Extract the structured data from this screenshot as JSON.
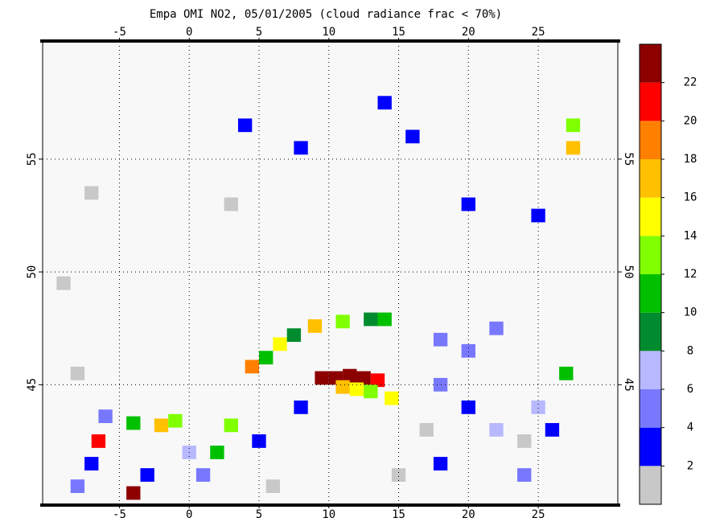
{
  "chart_data": {
    "type": "map",
    "title": "Empa OMI NO2, 05/01/2005 (cloud radiance frac < 70%)",
    "xlim": [
      -10.5,
      30.7
    ],
    "ylim": [
      39.7,
      60.2
    ],
    "xticks": [
      -5,
      0,
      5,
      10,
      15,
      20,
      25
    ],
    "yticks": [
      45,
      50,
      55
    ],
    "grid": true,
    "colorbar": {
      "bounds": [
        0,
        2,
        4,
        6,
        8,
        10,
        12,
        14,
        16,
        18,
        20,
        22,
        24
      ],
      "colors": [
        "#c8c8c8",
        "#0000ff",
        "#7878ff",
        "#b8b8ff",
        "#008c2e",
        "#00c000",
        "#80ff00",
        "#ffff00",
        "#ffc000",
        "#ff8000",
        "#ff0000",
        "#8c0000"
      ],
      "ticks": [
        2,
        4,
        6,
        8,
        10,
        12,
        14,
        16,
        18,
        20,
        22
      ]
    },
    "cells": {
      "lon": [
        9.5,
        10.5,
        11.5,
        12.5,
        13.5,
        11,
        12,
        13,
        14.5,
        5.5,
        6.5,
        7.5,
        9,
        11,
        13,
        14,
        4.5,
        -6,
        -4,
        -2,
        -1,
        -6.5,
        -4,
        -3,
        -7,
        -8,
        0,
        3,
        2,
        1,
        5,
        6,
        8,
        18,
        20,
        22,
        24,
        20,
        18,
        22,
        25,
        26,
        17,
        15,
        18,
        24,
        27,
        4,
        8,
        16,
        14,
        20,
        27.5,
        27.5,
        25,
        -7,
        -9,
        -8,
        3
      ],
      "lat": [
        45.3,
        45.3,
        45.4,
        45.3,
        45.2,
        44.9,
        44.8,
        44.7,
        44.4,
        46.2,
        46.8,
        47.2,
        47.6,
        47.8,
        47.9,
        47.9,
        45.8,
        43.6,
        43.3,
        43.2,
        43.4,
        42.5,
        40.2,
        41,
        41.5,
        40.5,
        42,
        43.2,
        42,
        41,
        42.5,
        40.5,
        44,
        45,
        44,
        43,
        42.5,
        46.5,
        47,
        47.5,
        44,
        43,
        43,
        41,
        41.5,
        41,
        45.5,
        56.5,
        55.5,
        56,
        57.5,
        53,
        56.5,
        55.5,
        52.5,
        53.5,
        49.5,
        45.5,
        53
      ],
      "values": [
        23,
        23,
        23,
        23,
        21,
        17,
        15,
        13,
        15,
        11,
        15,
        9,
        17,
        13,
        9,
        11,
        19,
        5,
        11,
        17,
        13,
        21,
        23,
        3,
        3,
        5,
        7,
        13,
        11,
        5,
        3,
        1,
        3,
        5,
        3,
        7,
        1,
        5,
        5,
        5,
        7,
        3,
        1,
        1,
        3,
        5,
        11,
        3,
        3,
        3,
        3,
        3,
        13,
        17,
        3,
        1,
        1,
        1,
        1
      ]
    }
  }
}
